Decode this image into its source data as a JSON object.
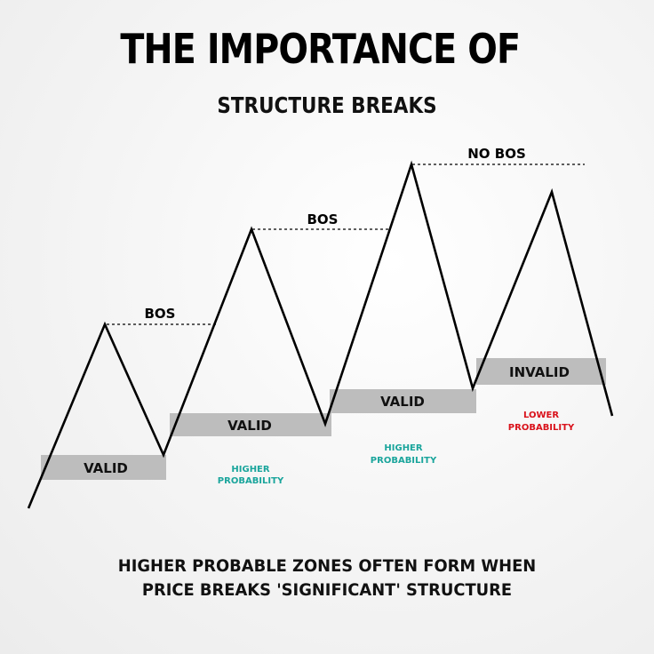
{
  "header": {
    "title": "THE IMPORTANCE OF",
    "subtitle": "STRUCTURE BREAKS"
  },
  "diagram": {
    "break_labels": [
      "BOS",
      "BOS",
      "NO BOS"
    ],
    "zone_labels": [
      "VALID",
      "VALID",
      "VALID",
      "INVALID"
    ],
    "probability_notes": [
      {
        "line1": "HIGHER",
        "line2": "PROBABILITY"
      },
      {
        "line1": "HIGHER",
        "line2": "PROBABILITY"
      },
      {
        "line1": "LOWER",
        "line2": "PROBABILITY"
      }
    ]
  },
  "footer": {
    "line1": "HIGHER PROBABLE ZONES OFTEN FORM WHEN",
    "line2": "PRICE BREAKS 'SIGNIFICANT' STRUCTURE"
  },
  "colors": {
    "higher_probability": "#1aa59c",
    "lower_probability": "#d9121b",
    "zone_fill": "#bdbdbd",
    "line": "#000000"
  }
}
